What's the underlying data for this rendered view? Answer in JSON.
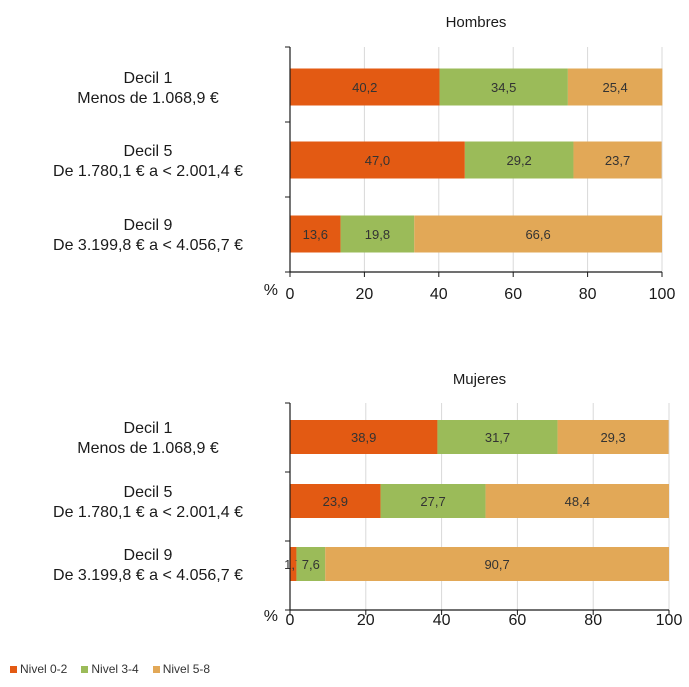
{
  "chart_data": [
    {
      "type": "bar",
      "orientation": "horizontal",
      "stacked": true,
      "title": "Hombres",
      "categories": [
        [
          "Decil 1",
          "Menos de 1.068,9 €"
        ],
        [
          "Decil 5",
          "De 1.780,1 € a < 2.001,4 €"
        ],
        [
          "Decil 9",
          "De 3.199,8 € a < 4.056,7 €"
        ]
      ],
      "series": [
        {
          "name": "Nivel 0-2",
          "values": [
            40.2,
            47.0,
            13.6
          ],
          "labels": [
            "40,2",
            "47,0",
            "13,6"
          ]
        },
        {
          "name": "Nivel 3-4",
          "values": [
            34.5,
            29.2,
            19.8
          ],
          "labels": [
            "34,5",
            "29,2",
            "19,8"
          ]
        },
        {
          "name": "Nivel 5-8",
          "values": [
            25.4,
            23.7,
            66.6
          ],
          "labels": [
            "25,4",
            "23,7",
            "66,6"
          ]
        }
      ],
      "x_unit": "%",
      "xlim": [
        0,
        100
      ],
      "xticks": [
        0,
        20,
        40,
        60,
        80,
        100
      ],
      "xtick_labels": [
        "0",
        "20",
        "40",
        "60",
        "80",
        "100"
      ],
      "grid": "vertical"
    },
    {
      "type": "bar",
      "orientation": "horizontal",
      "stacked": true,
      "title": "Mujeres",
      "categories": [
        [
          "Decil 1",
          "Menos de 1.068,9 €"
        ],
        [
          "Decil 5",
          "De 1.780,1 € a < 2.001,4 €"
        ],
        [
          "Decil 9",
          "De 3.199,8 € a < 4.056,7 €"
        ]
      ],
      "series": [
        {
          "name": "Nivel 0-2",
          "values": [
            38.9,
            23.9,
            1.7
          ],
          "labels": [
            "38,9",
            "23,9",
            "1,7"
          ]
        },
        {
          "name": "Nivel 3-4",
          "values": [
            31.7,
            27.7,
            7.6
          ],
          "labels": [
            "31,7",
            "27,7",
            "7,6"
          ]
        },
        {
          "name": "Nivel 5-8",
          "values": [
            29.3,
            48.4,
            90.7
          ],
          "labels": [
            "29,3",
            "48,4",
            "90,7"
          ]
        }
      ],
      "x_unit": "%",
      "xlim": [
        0,
        100
      ],
      "xticks": [
        0,
        20,
        40,
        60,
        80,
        100
      ],
      "xtick_labels": [
        "0",
        "20",
        "40",
        "60",
        "80",
        "100"
      ],
      "grid": "vertical"
    }
  ],
  "legend": {
    "placement": "bottom-left",
    "items": [
      {
        "label": "Nivel 0-2",
        "color": "#e35a13"
      },
      {
        "label": "Nivel 3-4",
        "color": "#9bbb59"
      },
      {
        "label": "Nivel 5-8",
        "color": "#e2a857"
      }
    ]
  },
  "colors": {
    "series": [
      "#e35a13",
      "#9bbb59",
      "#e2a857"
    ],
    "grid": "#d9d9d9",
    "axis": "#1a1a1a"
  }
}
